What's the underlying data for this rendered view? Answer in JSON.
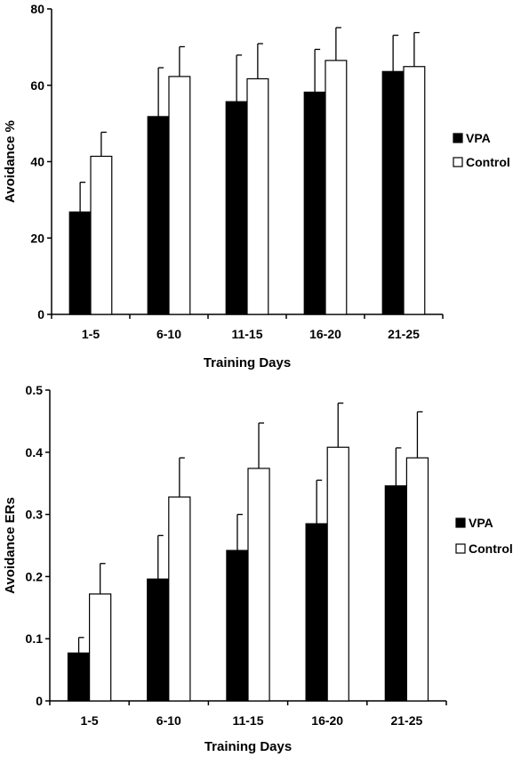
{
  "chart_data": [
    {
      "type": "bar",
      "categories": [
        "1-5",
        "6-10",
        "11-15",
        "16-20",
        "21-25"
      ],
      "series": [
        {
          "name": "VPA",
          "values": [
            26.8,
            51.8,
            55.7,
            58.2,
            63.6
          ],
          "errors": [
            7.8,
            12.8,
            12.2,
            11.2,
            9.5
          ],
          "color": "#000000"
        },
        {
          "name": "Control",
          "values": [
            41.4,
            62.3,
            61.7,
            66.5,
            64.9
          ],
          "errors": [
            6.3,
            7.8,
            9.2,
            8.6,
            8.9
          ],
          "color": "#ffffff"
        }
      ],
      "title": "",
      "xlabel": "Training Days",
      "ylabel": "Avoidance %",
      "ylim": [
        0,
        80
      ],
      "yticks": [
        "0",
        "20",
        "40",
        "60",
        "80"
      ],
      "legend_position": "right",
      "grid": false
    },
    {
      "type": "bar",
      "categories": [
        "1-5",
        "6-10",
        "11-15",
        "16-20",
        "21-25"
      ],
      "series": [
        {
          "name": "VPA",
          "values": [
            0.077,
            0.196,
            0.242,
            0.285,
            0.346
          ],
          "errors": [
            0.025,
            0.07,
            0.058,
            0.07,
            0.061
          ],
          "color": "#000000"
        },
        {
          "name": "Control",
          "values": [
            0.172,
            0.328,
            0.374,
            0.408,
            0.391
          ],
          "errors": [
            0.049,
            0.063,
            0.073,
            0.071,
            0.074
          ],
          "color": "#ffffff"
        }
      ],
      "title": "",
      "xlabel": "Training Days",
      "ylabel": "Avoidance ERs",
      "ylim": [
        0,
        0.5
      ],
      "yticks": [
        "0",
        "0.1",
        "0.2",
        "0.3",
        "0.4",
        "0.5"
      ],
      "legend_position": "right",
      "grid": false
    }
  ]
}
